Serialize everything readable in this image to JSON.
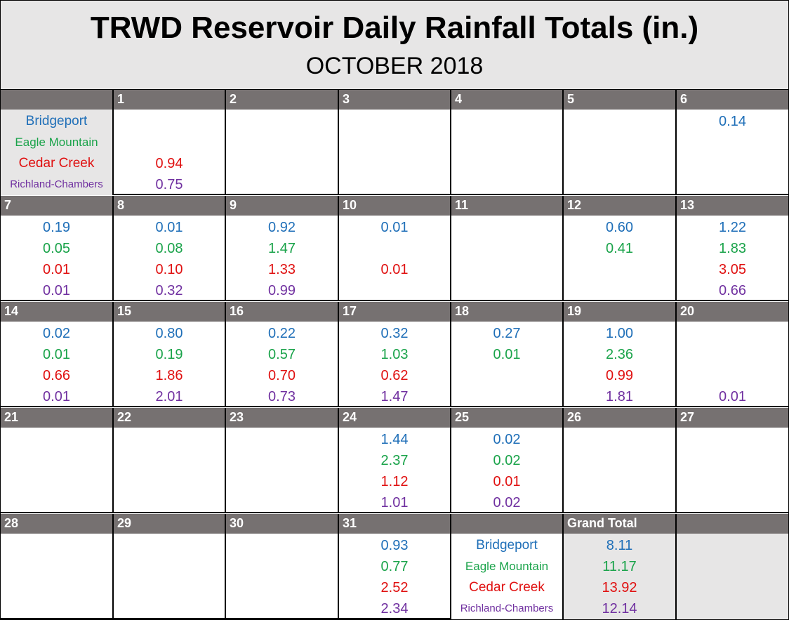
{
  "title": "TRWD Reservoir Daily Rainfall Totals (in.)",
  "subtitle": "OCTOBER 2018",
  "colors": {
    "Bridgeport": "#1f6fb8",
    "Eagle Mountain": "#1aa34a",
    "Cedar Creek": "#e01010",
    "Richland-Chambers": "#7030a0",
    "header_bar": "#767171",
    "label_bg": "#e7e6e6"
  },
  "reservoirs": [
    "Bridgeport",
    "Eagle Mountain",
    "Cedar Creek",
    "Richland-Chambers"
  ],
  "grand_total_label": "Grand Total",
  "grand_totals": [
    "8.11",
    "11.17",
    "13.92",
    "12.14"
  ],
  "days": {
    "1": [
      "",
      "",
      "0.94",
      "0.75"
    ],
    "2": [
      "",
      "",
      "",
      ""
    ],
    "3": [
      "",
      "",
      "",
      ""
    ],
    "4": [
      "",
      "",
      "",
      ""
    ],
    "5": [
      "",
      "",
      "",
      ""
    ],
    "6": [
      "0.14",
      "",
      "",
      ""
    ],
    "7": [
      "0.19",
      "0.05",
      "0.01",
      "0.01"
    ],
    "8": [
      "0.01",
      "0.08",
      "0.10",
      "0.32"
    ],
    "9": [
      "0.92",
      "1.47",
      "1.33",
      "0.99"
    ],
    "10": [
      "0.01",
      "",
      "0.01",
      ""
    ],
    "11": [
      "",
      "",
      "",
      ""
    ],
    "12": [
      "0.60",
      "0.41",
      "",
      ""
    ],
    "13": [
      "1.22",
      "1.83",
      "3.05",
      "0.66"
    ],
    "14": [
      "0.02",
      "0.01",
      "0.66",
      "0.01"
    ],
    "15": [
      "0.80",
      "0.19",
      "1.86",
      "2.01"
    ],
    "16": [
      "0.22",
      "0.57",
      "0.70",
      "0.73"
    ],
    "17": [
      "0.32",
      "1.03",
      "0.62",
      "1.47"
    ],
    "18": [
      "0.27",
      "0.01",
      "",
      ""
    ],
    "19": [
      "1.00",
      "2.36",
      "0.99",
      "1.81"
    ],
    "20": [
      "",
      "",
      "",
      "0.01"
    ],
    "21": [
      "",
      "",
      "",
      ""
    ],
    "22": [
      "",
      "",
      "",
      ""
    ],
    "23": [
      "",
      "",
      "",
      ""
    ],
    "24": [
      "1.44",
      "2.37",
      "1.12",
      "1.01"
    ],
    "25": [
      "0.02",
      "0.02",
      "0.01",
      "0.02"
    ],
    "26": [
      "",
      "",
      "",
      ""
    ],
    "27": [
      "",
      "",
      "",
      ""
    ],
    "28": [
      "",
      "",
      "",
      ""
    ],
    "29": [
      "",
      "",
      "",
      ""
    ],
    "30": [
      "",
      "",
      "",
      ""
    ],
    "31": [
      "0.93",
      "0.77",
      "2.52",
      "2.34"
    ]
  },
  "weeks": [
    [
      "legend",
      "1",
      "2",
      "3",
      "4",
      "5",
      "6"
    ],
    [
      "7",
      "8",
      "9",
      "10",
      "11",
      "12",
      "13"
    ],
    [
      "14",
      "15",
      "16",
      "17",
      "18",
      "19",
      "20"
    ],
    [
      "21",
      "22",
      "23",
      "24",
      "25",
      "26",
      "27"
    ],
    [
      "28",
      "29",
      "30",
      "31",
      "legend2",
      "grandtotal",
      "blank"
    ]
  ]
}
